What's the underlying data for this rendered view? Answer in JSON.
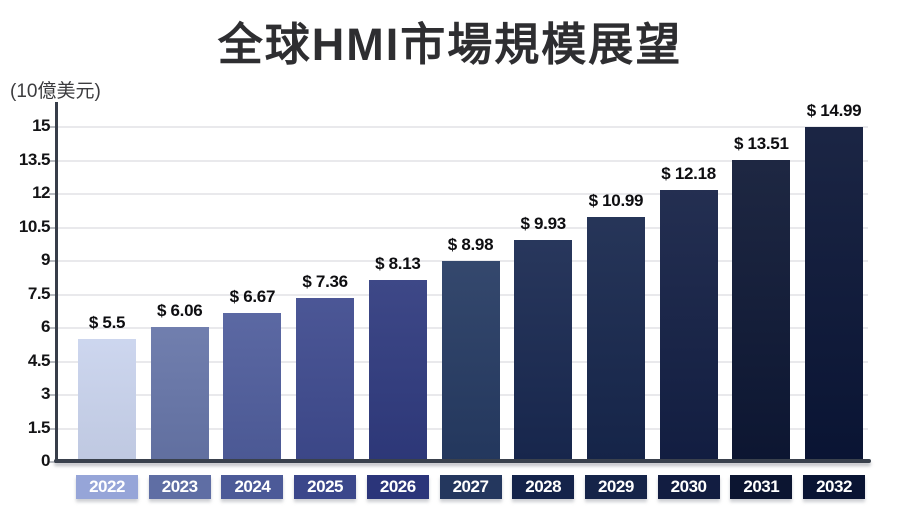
{
  "title": "全球HMI市場規模展望",
  "unit_label": "(10億美元)",
  "colors": {
    "background": "#ffffff",
    "title_text": "#2e2e31",
    "axis_line": "#3a414d",
    "gridline": "#e9e9ec",
    "tick_text": "#141416",
    "value_text": "#0e0e11",
    "badge_text": "#ffffff"
  },
  "chart_data": {
    "type": "bar",
    "title": "全球HMI市場規模展望",
    "ylabel": "(10億美元)",
    "xlabel": "",
    "categories": [
      "2022",
      "2023",
      "2024",
      "2025",
      "2026",
      "2027",
      "2028",
      "2029",
      "2030",
      "2031",
      "2032"
    ],
    "values": [
      5.5,
      6.06,
      6.67,
      7.36,
      8.13,
      8.98,
      9.93,
      10.99,
      12.18,
      13.51,
      14.99
    ],
    "value_labels": [
      "$ 5.5",
      "$ 6.06",
      "$ 6.67",
      "$ 7.36",
      "$ 8.13",
      "$ 8.98",
      "$ 9.93",
      "$ 10.99",
      "$ 12.18",
      "$ 13.51",
      "$ 14.99"
    ],
    "bar_colors": [
      "#c9d3ed",
      "#6675a8",
      "#4f5d9c",
      "#3e4a8e",
      "#2f3a7e",
      "#253a62",
      "#182850",
      "#16264c",
      "#131f44",
      "#0d1734",
      "#0a1536"
    ],
    "badge_colors": [
      "#96a5d8",
      "#5f6ea4",
      "#4c5a98",
      "#3b478b",
      "#2b357a",
      "#24375e",
      "#14234a",
      "#152449",
      "#121d41",
      "#0c1531",
      "#091433"
    ],
    "yticks": [
      0,
      1.5,
      3,
      4.5,
      6,
      7.5,
      9,
      10.5,
      12,
      13.5,
      15
    ],
    "ytick_labels": [
      "0",
      "1.5",
      "3",
      "4.5",
      "6",
      "7.5",
      "9",
      "10.5",
      "12",
      "13.5",
      "15"
    ],
    "ylim": [
      0,
      15
    ],
    "grid": "horizontal",
    "legend": "none"
  }
}
